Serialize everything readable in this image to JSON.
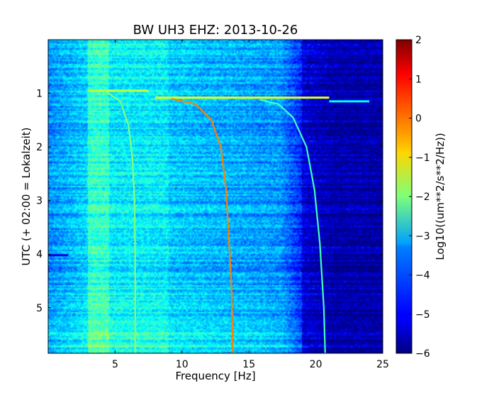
{
  "chart_data": {
    "type": "heatmap",
    "title": "BW UH3 EHZ: 2013-10-26",
    "xlabel": "Frequency [Hz]",
    "ylabel": "UTC (+ 02:00 = Lokalzeit)",
    "xlim": [
      0,
      25
    ],
    "ylim": [
      5.85,
      0
    ],
    "xticks": [
      "5",
      "10",
      "15",
      "20",
      "25"
    ],
    "yticks": [
      "1",
      "2",
      "3",
      "4",
      "5"
    ],
    "colorbar": {
      "label": "Log10((um**2/s**2/Hz))",
      "range": [
        -6,
        2
      ],
      "ticks": [
        "2",
        "1",
        "0",
        "−1",
        "−2",
        "−3",
        "−4",
        "−5",
        "−6"
      ],
      "colormap": "jet"
    },
    "traces": [
      {
        "points": [
          [
            4.2,
            0.95
          ],
          [
            5.4,
            1.15
          ],
          [
            6.0,
            1.6
          ],
          [
            6.3,
            2.2
          ],
          [
            6.45,
            3.0
          ],
          [
            6.5,
            4.0
          ],
          [
            6.5,
            5.0
          ],
          [
            6.5,
            5.85
          ]
        ],
        "level": -2.0
      },
      {
        "points": [
          [
            9.2,
            1.1
          ],
          [
            11.0,
            1.2
          ],
          [
            12.2,
            1.5
          ],
          [
            12.9,
            2.0
          ],
          [
            13.3,
            2.8
          ],
          [
            13.5,
            3.7
          ],
          [
            13.7,
            4.6
          ],
          [
            13.8,
            5.85
          ]
        ],
        "level": 0.0
      },
      {
        "points": [
          [
            15.8,
            1.12
          ],
          [
            17.2,
            1.2
          ],
          [
            18.3,
            1.45
          ],
          [
            19.3,
            2.0
          ],
          [
            19.9,
            2.8
          ],
          [
            20.3,
            3.8
          ],
          [
            20.6,
            5.0
          ],
          [
            20.7,
            5.85
          ]
        ],
        "level": -2.5
      }
    ],
    "interference_bands": [
      {
        "time": 0.95,
        "from": 3.0,
        "to": 7.5,
        "level": -1.5
      },
      {
        "time": 1.08,
        "from": 8.0,
        "to": 21.0,
        "level": -1.2
      },
      {
        "time": 1.15,
        "from": 21.0,
        "to": 24.0,
        "level": -3.0
      },
      {
        "time": 4.02,
        "from": 0.0,
        "to": 1.5,
        "level": -5.3
      }
    ]
  },
  "colors": {
    "background": "#ffffff",
    "axes_edge": "#000000",
    "colormap_low": "#00007f",
    "colormap_high": "#7f0000"
  }
}
